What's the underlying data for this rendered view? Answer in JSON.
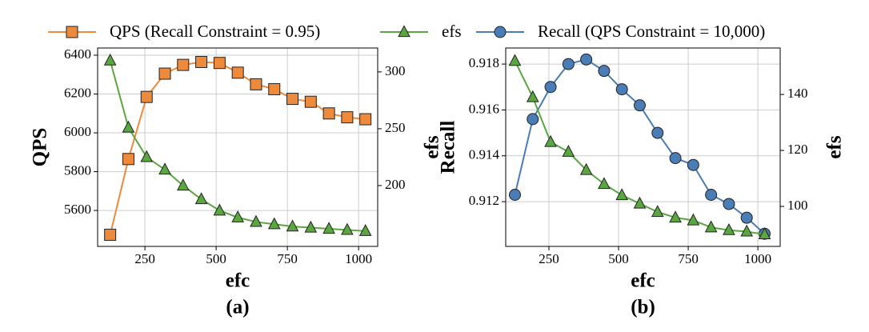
{
  "chart_data": [
    {
      "type": "line",
      "caption": "(a)",
      "xlabel": "efc",
      "ylabel": "QPS",
      "y2label": "efs",
      "x": [
        128,
        192,
        256,
        320,
        384,
        448,
        512,
        576,
        640,
        704,
        768,
        832,
        896,
        960,
        1024
      ],
      "xlim": [
        84,
        1067
      ],
      "xticks": [
        250,
        500,
        750,
        1000
      ],
      "ylim": [
        5415,
        6437
      ],
      "yticks": [
        5600,
        5800,
        6000,
        6200,
        6400
      ],
      "y2lim": [
        146.5,
        321
      ],
      "y2ticks": [
        200,
        250,
        300
      ],
      "grid": true,
      "series": [
        {
          "name": "QPS (Recall Constraint = 0.95)",
          "color": "#ee8a3c",
          "marker": "square",
          "values": [
            5475,
            5865,
            6185,
            6305,
            6350,
            6365,
            6360,
            6310,
            6250,
            6225,
            6175,
            6160,
            6100,
            6080,
            6070
          ]
        },
        {
          "name": "efs",
          "color": "#5aa641",
          "marker": "triangle",
          "axis": "y2",
          "values": [
            310,
            251,
            225,
            214,
            200,
            188,
            178,
            172,
            168,
            166,
            164,
            163,
            162,
            161,
            160
          ]
        }
      ]
    },
    {
      "type": "line",
      "caption": "(b)",
      "xlabel": "efc",
      "ylabel": "Recall",
      "y2label": "efs",
      "x": [
        128,
        192,
        256,
        320,
        384,
        448,
        512,
        576,
        640,
        704,
        768,
        832,
        896,
        960,
        1024
      ],
      "xlim": [
        95,
        1080
      ],
      "xticks": [
        250,
        500,
        750,
        1000
      ],
      "ylim": [
        0.91005,
        0.9187
      ],
      "yticks": [
        0.912,
        0.914,
        0.916,
        0.918
      ],
      "y2lim": [
        85.7,
        156.6
      ],
      "y2ticks": [
        100,
        120,
        140
      ],
      "grid": true,
      "series": [
        {
          "name": "Recall (QPS Constraint = 10,000)",
          "color": "#4a7db5",
          "marker": "circle",
          "values": [
            0.9123,
            0.9156,
            0.917,
            0.918,
            0.9182,
            0.9177,
            0.9169,
            0.9162,
            0.915,
            0.9139,
            0.9136,
            0.9123,
            0.9119,
            0.9113,
            0.9106
          ]
        },
        {
          "name": "efs",
          "color": "#5aa641",
          "marker": "triangle",
          "axis": "y2",
          "values": [
            152,
            139,
            123,
            119.5,
            113,
            108,
            104,
            101,
            98,
            96,
            95,
            92.5,
            91.5,
            91,
            90
          ]
        }
      ]
    }
  ]
}
